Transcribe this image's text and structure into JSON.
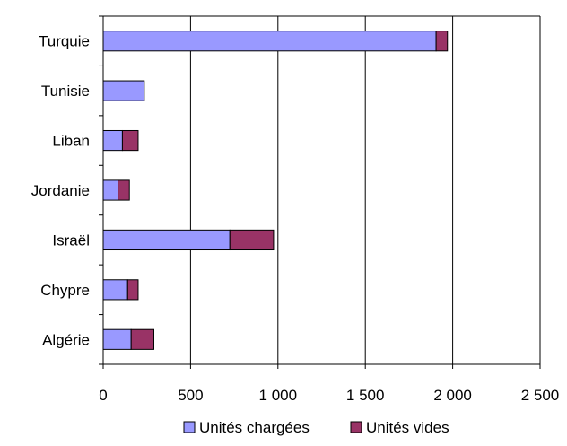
{
  "chart_data": {
    "type": "bar",
    "orientation": "horizontal",
    "stacked": true,
    "categories": [
      "Turquie",
      "Tunisie",
      "Liban",
      "Jordanie",
      "Israël",
      "Chypre",
      "Algérie"
    ],
    "series": [
      {
        "name": "Unités chargées",
        "color": "#9999ff",
        "values": [
          1905,
          235,
          110,
          85,
          725,
          140,
          160
        ]
      },
      {
        "name": "Unités vides",
        "color": "#993366",
        "values": [
          65,
          0,
          90,
          65,
          250,
          60,
          130
        ]
      }
    ],
    "x_ticks": [
      0,
      500,
      1000,
      1500,
      2000,
      2500
    ],
    "x_tick_labels": [
      "0",
      "500",
      "1 000",
      "1 500",
      "2 000",
      "2 500"
    ],
    "xlim": [
      0,
      2500
    ],
    "grid": "vertical",
    "legend": "bottom",
    "title": "",
    "xlabel": "",
    "ylabel": ""
  }
}
